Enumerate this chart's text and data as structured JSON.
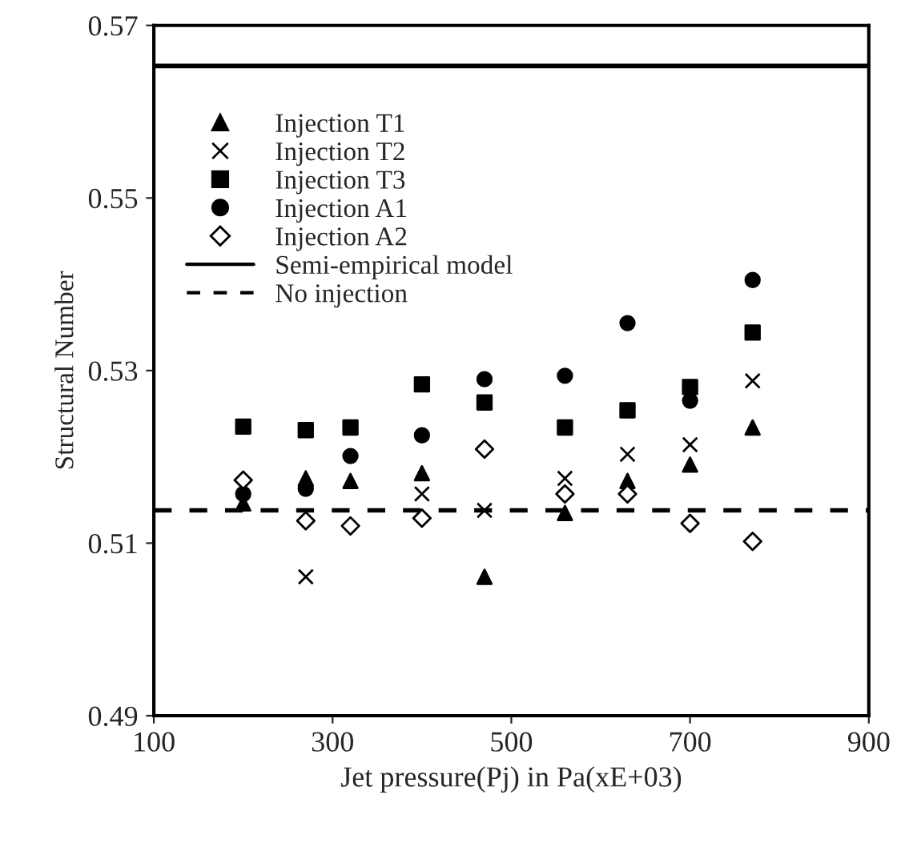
{
  "chart_data": {
    "type": "scatter",
    "xlabel": "Jet pressure(Pj) in Pa(xE+03)",
    "ylabel": "Structural Number",
    "x": [
      200,
      270,
      320,
      400,
      470,
      560,
      630,
      700,
      770
    ],
    "series": [
      {
        "name": "Injection T1",
        "color": "#000000",
        "marker": "triangle",
        "values": [
          0.5146,
          0.5175,
          0.5172,
          0.5181,
          0.5061,
          0.5135,
          0.5172,
          0.5191,
          0.5234
        ]
      },
      {
        "name": "Injection T2",
        "color": "#000000",
        "marker": "cross",
        "values": [
          null,
          0.5061,
          null,
          0.5157,
          0.5138,
          0.5175,
          0.5203,
          0.5214,
          0.5288
        ]
      },
      {
        "name": "Injection T3",
        "color": "#000000",
        "marker": "square",
        "values": [
          0.5235,
          0.5231,
          0.5234,
          0.5284,
          0.5263,
          0.5234,
          0.5254,
          0.5281,
          0.5344
        ]
      },
      {
        "name": "Injection A1",
        "color": "#000000",
        "marker": "circle",
        "values": [
          0.5157,
          0.5163,
          0.5201,
          0.5225,
          0.529,
          0.5294,
          0.5355,
          0.5265,
          0.5405
        ]
      },
      {
        "name": "Injection A2",
        "color": "#000000",
        "marker": "diamond",
        "values": [
          0.5173,
          0.5126,
          0.512,
          0.5129,
          0.5209,
          0.5157,
          0.5157,
          0.5123,
          0.5102
        ]
      }
    ],
    "ref_lines": [
      {
        "axis": "y",
        "value": 0.5653,
        "label": "Semi-empirical model",
        "color": "#000000",
        "line_style": "solid"
      },
      {
        "axis": "y",
        "value": 0.5138,
        "label": "No injection",
        "color": "#000000",
        "line_style": "dashed"
      }
    ],
    "xlim": [
      100,
      900
    ],
    "xticks": [
      100,
      300,
      500,
      700,
      900
    ],
    "ylim": [
      0.49,
      0.57
    ],
    "yticks": [
      0.49,
      0.51,
      0.53,
      0.55,
      0.57
    ],
    "grid": false,
    "legend": "top left"
  }
}
